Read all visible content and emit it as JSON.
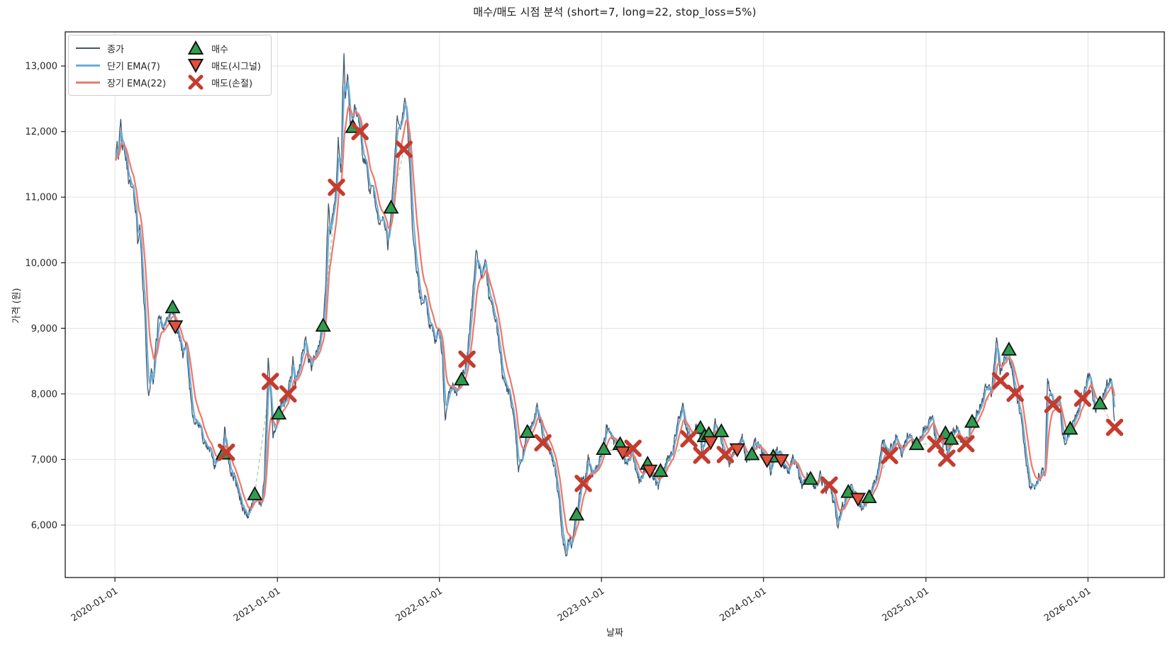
{
  "chart_data": {
    "type": "line",
    "title": "매수/매도 시점 분석 (short=7, long=22, stop_loss=5%)",
    "xlabel": "날짜",
    "ylabel": "가격 (원)",
    "params": {
      "short": 7,
      "long": 22,
      "stop_loss_pct": "5%"
    },
    "x_ticks": [
      "2020-01-01",
      "2021-01-01",
      "2022-01-01",
      "2023-01-01",
      "2024-01-01",
      "2025-01-01",
      "2026-01-01"
    ],
    "y_ticks": [
      6000,
      7000,
      8000,
      9000,
      10000,
      11000,
      12000,
      13000
    ],
    "y_tick_labels": [
      "6,000",
      "7,000",
      "8,000",
      "9,000",
      "10,000",
      "11,000",
      "12,000",
      "13,000"
    ],
    "xlim": [
      "2019-09-11",
      "2026-06-22"
    ],
    "ylim": [
      5200,
      13520
    ],
    "grid": true,
    "legend": {
      "position": "upper left",
      "close": "종가",
      "ema_short": "단기 EMA(7)",
      "ema_long": "장기 EMA(22)",
      "buy": "매수",
      "sell_signal": "매도(시그널)",
      "stop_loss": "매도(손절)"
    },
    "colors": {
      "close": "#44576b",
      "ema_short": "#6aaed6",
      "ema_long": "#ee7b6e",
      "buy": "#2e9e4e",
      "sell_signal": "#e0503c",
      "stop_loss": "#c43c2e",
      "marker_edge": "#111111",
      "grid": "#e2e2e2",
      "spine": "#1a1a1a",
      "trade_win": "#9fd8a8",
      "trade_loss": "#f2b0ac"
    },
    "close_series": [
      [
        "2020-01-02",
        11600
      ],
      [
        "2020-01-06",
        11900
      ],
      [
        "2020-01-09",
        11650
      ],
      [
        "2020-01-14",
        12150
      ],
      [
        "2020-01-17",
        11800
      ],
      [
        "2020-01-23",
        11680
      ],
      [
        "2020-01-31",
        11320
      ],
      [
        "2020-02-06",
        11150
      ],
      [
        "2020-02-12",
        11060
      ],
      [
        "2020-02-18",
        10720
      ],
      [
        "2020-02-21",
        10320
      ],
      [
        "2020-02-26",
        10560
      ],
      [
        "2020-03-03",
        9750
      ],
      [
        "2020-03-09",
        9100
      ],
      [
        "2020-03-13",
        8350
      ],
      [
        "2020-03-17",
        7950
      ],
      [
        "2020-03-23",
        8320
      ],
      [
        "2020-03-27",
        8180
      ],
      [
        "2020-04-03",
        8820
      ],
      [
        "2020-04-10",
        9220
      ],
      [
        "2020-04-17",
        9010
      ],
      [
        "2020-04-24",
        9120
      ],
      [
        "2020-05-04",
        9180
      ],
      [
        "2020-05-08",
        9310
      ],
      [
        "2020-05-13",
        9150
      ],
      [
        "2020-05-18",
        9010
      ],
      [
        "2020-05-25",
        8870
      ],
      [
        "2020-06-03",
        8570
      ],
      [
        "2020-06-10",
        8700
      ],
      [
        "2020-06-17",
        8120
      ],
      [
        "2020-06-24",
        7700
      ],
      [
        "2020-07-03",
        7560
      ],
      [
        "2020-07-14",
        7420
      ],
      [
        "2020-07-23",
        7210
      ],
      [
        "2020-08-04",
        7090
      ],
      [
        "2020-08-13",
        6910
      ],
      [
        "2020-08-24",
        7060
      ],
      [
        "2020-09-01",
        7100
      ],
      [
        "2020-09-04",
        7480
      ],
      [
        "2020-09-10",
        7050
      ],
      [
        "2020-09-18",
        6820
      ],
      [
        "2020-09-29",
        6700
      ],
      [
        "2020-10-08",
        6420
      ],
      [
        "2020-10-16",
        6230
      ],
      [
        "2020-10-27",
        6140
      ],
      [
        "2020-11-04",
        6330
      ],
      [
        "2020-11-11",
        6470
      ],
      [
        "2020-11-18",
        6380
      ],
      [
        "2020-11-26",
        6220
      ],
      [
        "2020-12-03",
        6850
      ],
      [
        "2020-12-08",
        7750
      ],
      [
        "2020-12-11",
        8600
      ],
      [
        "2020-12-16",
        8190
      ],
      [
        "2020-12-22",
        7320
      ],
      [
        "2020-12-29",
        7520
      ],
      [
        "2021-01-04",
        7700
      ],
      [
        "2021-01-12",
        7890
      ],
      [
        "2021-01-19",
        7820
      ],
      [
        "2021-01-25",
        8000
      ],
      [
        "2021-02-02",
        8380
      ],
      [
        "2021-02-05",
        8560
      ],
      [
        "2021-02-10",
        8160
      ],
      [
        "2021-02-18",
        8330
      ],
      [
        "2021-03-05",
        8860
      ],
      [
        "2021-03-12",
        8520
      ],
      [
        "2021-03-19",
        8430
      ],
      [
        "2021-03-31",
        8690
      ],
      [
        "2021-04-08",
        8840
      ],
      [
        "2021-04-14",
        9040
      ],
      [
        "2021-04-20",
        9700
      ],
      [
        "2021-04-26",
        10930
      ],
      [
        "2021-04-30",
        10400
      ],
      [
        "2021-05-07",
        10780
      ],
      [
        "2021-05-13",
        11120
      ],
      [
        "2021-05-18",
        11860
      ],
      [
        "2021-05-24",
        11380
      ],
      [
        "2021-05-28",
        12600
      ],
      [
        "2021-05-31",
        13130
      ],
      [
        "2021-06-03",
        12480
      ],
      [
        "2021-06-08",
        12880
      ],
      [
        "2021-06-14",
        12150
      ],
      [
        "2021-06-18",
        12060
      ],
      [
        "2021-06-24",
        12420
      ],
      [
        "2021-06-30",
        12230
      ],
      [
        "2021-07-06",
        12000
      ],
      [
        "2021-07-13",
        11580
      ],
      [
        "2021-07-20",
        11520
      ],
      [
        "2021-07-28",
        11010
      ],
      [
        "2021-08-04",
        11190
      ],
      [
        "2021-08-12",
        10790
      ],
      [
        "2021-08-20",
        10580
      ],
      [
        "2021-08-27",
        10700
      ],
      [
        "2021-09-07",
        10260
      ],
      [
        "2021-09-14",
        10840
      ],
      [
        "2021-09-21",
        11420
      ],
      [
        "2021-09-28",
        12180
      ],
      [
        "2021-10-05",
        12080
      ],
      [
        "2021-10-12",
        12300
      ],
      [
        "2021-10-15",
        12560
      ],
      [
        "2021-10-21",
        12080
      ],
      [
        "2021-10-27",
        11280
      ],
      [
        "2021-11-02",
        10420
      ],
      [
        "2021-11-09",
        10030
      ],
      [
        "2021-11-16",
        9580
      ],
      [
        "2021-11-23",
        9300
      ],
      [
        "2021-12-01",
        9520
      ],
      [
        "2021-12-08",
        9080
      ],
      [
        "2021-12-16",
        9010
      ],
      [
        "2021-12-23",
        8820
      ],
      [
        "2021-12-31",
        8960
      ],
      [
        "2022-01-07",
        8620
      ],
      [
        "2022-01-14",
        7500
      ],
      [
        "2022-01-21",
        8050
      ],
      [
        "2022-01-31",
        8120
      ],
      [
        "2022-02-08",
        8000
      ],
      [
        "2022-02-18",
        8220
      ],
      [
        "2022-02-25",
        8350
      ],
      [
        "2022-03-04",
        8530
      ],
      [
        "2022-03-14",
        9300
      ],
      [
        "2022-03-25",
        10230
      ],
      [
        "2022-04-05",
        9700
      ],
      [
        "2022-04-14",
        10100
      ],
      [
        "2022-04-22",
        9500
      ],
      [
        "2022-05-03",
        9300
      ],
      [
        "2022-05-13",
        8850
      ],
      [
        "2022-05-24",
        8250
      ],
      [
        "2022-06-07",
        8000
      ],
      [
        "2022-06-17",
        7700
      ],
      [
        "2022-06-28",
        6850
      ],
      [
        "2022-07-08",
        7100
      ],
      [
        "2022-07-18",
        7420
      ],
      [
        "2022-07-28",
        7550
      ],
      [
        "2022-08-09",
        7800
      ],
      [
        "2022-08-18",
        7500
      ],
      [
        "2022-08-26",
        7250
      ],
      [
        "2022-09-06",
        7100
      ],
      [
        "2022-09-16",
        6950
      ],
      [
        "2022-09-27",
        6350
      ],
      [
        "2022-10-07",
        5750
      ],
      [
        "2022-10-13",
        5560
      ],
      [
        "2022-10-21",
        5800
      ],
      [
        "2022-10-27",
        5680
      ],
      [
        "2022-11-04",
        6120
      ],
      [
        "2022-11-11",
        6350
      ],
      [
        "2022-11-18",
        6700
      ],
      [
        "2022-11-25",
        6620
      ],
      [
        "2022-12-02",
        7080
      ],
      [
        "2022-12-12",
        6700
      ],
      [
        "2022-12-23",
        6930
      ],
      [
        "2023-01-04",
        7130
      ],
      [
        "2023-01-13",
        7520
      ],
      [
        "2023-01-20",
        7350
      ],
      [
        "2023-01-31",
        7250
      ],
      [
        "2023-02-10",
        7240
      ],
      [
        "2023-02-17",
        7120
      ],
      [
        "2023-02-28",
        6900
      ],
      [
        "2023-03-10",
        7170
      ],
      [
        "2023-03-21",
        6800
      ],
      [
        "2023-03-30",
        6680
      ],
      [
        "2023-04-11",
        6880
      ],
      [
        "2023-04-18",
        6900
      ],
      [
        "2023-04-27",
        6720
      ],
      [
        "2023-05-09",
        6580
      ],
      [
        "2023-05-17",
        6830
      ],
      [
        "2023-05-26",
        6950
      ],
      [
        "2023-06-09",
        7120
      ],
      [
        "2023-06-23",
        7560
      ],
      [
        "2023-07-03",
        7790
      ],
      [
        "2023-07-12",
        7450
      ],
      [
        "2023-07-20",
        7300
      ],
      [
        "2023-07-28",
        7420
      ],
      [
        "2023-08-08",
        7480
      ],
      [
        "2023-08-16",
        7090
      ],
      [
        "2023-08-23",
        7360
      ],
      [
        "2023-08-31",
        7390
      ],
      [
        "2023-09-07",
        7260
      ],
      [
        "2023-09-14",
        7540
      ],
      [
        "2023-09-25",
        7430
      ],
      [
        "2023-10-05",
        7090
      ],
      [
        "2023-10-17",
        6950
      ],
      [
        "2023-10-26",
        7120
      ],
      [
        "2023-11-03",
        7160
      ],
      [
        "2023-11-14",
        7330
      ],
      [
        "2023-11-24",
        6960
      ],
      [
        "2023-12-05",
        7080
      ],
      [
        "2023-12-14",
        7240
      ],
      [
        "2023-12-26",
        7180
      ],
      [
        "2024-01-08",
        6990
      ],
      [
        "2024-01-17",
        6830
      ],
      [
        "2024-01-25",
        7050
      ],
      [
        "2024-02-06",
        7110
      ],
      [
        "2024-02-15",
        6960
      ],
      [
        "2024-02-27",
        6840
      ],
      [
        "2024-03-08",
        7090
      ],
      [
        "2024-03-19",
        6880
      ],
      [
        "2024-03-28",
        6570
      ],
      [
        "2024-04-09",
        6790
      ],
      [
        "2024-04-16",
        6700
      ],
      [
        "2024-04-26",
        6560
      ],
      [
        "2024-05-09",
        6780
      ],
      [
        "2024-05-21",
        6470
      ],
      [
        "2024-05-29",
        6600
      ],
      [
        "2024-06-07",
        6350
      ],
      [
        "2024-06-17",
        5960
      ],
      [
        "2024-06-26",
        6250
      ],
      [
        "2024-07-08",
        6480
      ],
      [
        "2024-07-17",
        6560
      ],
      [
        "2024-07-30",
        6420
      ],
      [
        "2024-08-09",
        6250
      ],
      [
        "2024-08-23",
        6420
      ],
      [
        "2024-09-04",
        6600
      ],
      [
        "2024-09-13",
        6780
      ],
      [
        "2024-09-25",
        7310
      ],
      [
        "2024-10-07",
        7060
      ],
      [
        "2024-10-18",
        7230
      ],
      [
        "2024-10-28",
        7430
      ],
      [
        "2024-11-07",
        7110
      ],
      [
        "2024-11-21",
        7370
      ],
      [
        "2024-12-03",
        7230
      ],
      [
        "2024-12-12",
        7240
      ],
      [
        "2024-12-24",
        7420
      ],
      [
        "2025-01-07",
        7530
      ],
      [
        "2025-01-16",
        7620
      ],
      [
        "2025-01-24",
        7230
      ],
      [
        "2025-02-04",
        7100
      ],
      [
        "2025-02-13",
        7400
      ],
      [
        "2025-02-19",
        7020
      ],
      [
        "2025-02-27",
        7320
      ],
      [
        "2025-03-11",
        7530
      ],
      [
        "2025-03-21",
        7210
      ],
      [
        "2025-04-01",
        7260
      ],
      [
        "2025-04-14",
        7570
      ],
      [
        "2025-04-24",
        7680
      ],
      [
        "2025-05-07",
        7860
      ],
      [
        "2025-05-16",
        8120
      ],
      [
        "2025-05-28",
        8020
      ],
      [
        "2025-06-09",
        8840
      ],
      [
        "2025-06-17",
        8250
      ],
      [
        "2025-06-25",
        8500
      ],
      [
        "2025-07-04",
        8660
      ],
      [
        "2025-07-14",
        8380
      ],
      [
        "2025-07-22",
        8000
      ],
      [
        "2025-07-31",
        7750
      ],
      [
        "2025-08-12",
        7100
      ],
      [
        "2025-08-22",
        6590
      ],
      [
        "2025-08-28",
        6540
      ],
      [
        "2025-09-09",
        6700
      ],
      [
        "2025-09-17",
        6800
      ],
      [
        "2025-09-26",
        6750
      ],
      [
        "2025-10-02",
        8250
      ],
      [
        "2025-10-10",
        7950
      ],
      [
        "2025-10-17",
        7840
      ],
      [
        "2025-10-28",
        7950
      ],
      [
        "2025-11-07",
        7280
      ],
      [
        "2025-11-18",
        7400
      ],
      [
        "2025-11-27",
        7560
      ],
      [
        "2025-12-09",
        7740
      ],
      [
        "2025-12-18",
        7930
      ],
      [
        "2026-01-06",
        8290
      ],
      [
        "2026-01-16",
        7700
      ],
      [
        "2026-01-27",
        7850
      ],
      [
        "2026-02-12",
        8120
      ],
      [
        "2026-02-23",
        8230
      ],
      [
        "2026-03-02",
        7530
      ]
    ],
    "signals": {
      "buy": [
        [
          "2020-05-10",
          9320
        ],
        [
          "2020-09-01",
          7090
        ],
        [
          "2020-11-11",
          6470
        ],
        [
          "2021-01-04",
          7700
        ],
        [
          "2021-04-14",
          9040
        ],
        [
          "2021-06-20",
          12070
        ],
        [
          "2021-09-14",
          10840
        ],
        [
          "2022-02-20",
          8220
        ],
        [
          "2022-07-18",
          7420
        ],
        [
          "2022-11-06",
          6160
        ],
        [
          "2023-01-06",
          7160
        ],
        [
          "2023-02-12",
          7235
        ],
        [
          "2023-04-15",
          6935
        ],
        [
          "2023-05-14",
          6825
        ],
        [
          "2023-08-12",
          7480
        ],
        [
          "2023-08-21",
          7355
        ],
        [
          "2023-08-31",
          7390
        ],
        [
          "2023-09-28",
          7430
        ],
        [
          "2023-12-06",
          7080
        ],
        [
          "2024-01-23",
          7045
        ],
        [
          "2024-04-16",
          6705
        ],
        [
          "2024-07-10",
          6505
        ],
        [
          "2024-08-26",
          6425
        ],
        [
          "2024-12-11",
          7235
        ],
        [
          "2025-02-14",
          7400
        ],
        [
          "2025-02-27",
          7315
        ],
        [
          "2025-04-15",
          7575
        ],
        [
          "2025-07-07",
          8675
        ],
        [
          "2025-11-22",
          7470
        ],
        [
          "2026-01-28",
          7855
        ]
      ],
      "sell_signal": [
        [
          "2020-05-16",
          9030
        ],
        [
          "2023-02-18",
          7110
        ],
        [
          "2023-04-20",
          6830
        ],
        [
          "2023-09-04",
          7265
        ],
        [
          "2023-11-03",
          7155
        ],
        [
          "2024-01-09",
          6990
        ],
        [
          "2024-02-10",
          6990
        ],
        [
          "2024-08-01",
          6400
        ]
      ],
      "stop_loss": [
        [
          "2020-09-08",
          7110
        ],
        [
          "2020-12-16",
          8190
        ],
        [
          "2021-01-25",
          8000
        ],
        [
          "2021-05-14",
          11150
        ],
        [
          "2021-07-06",
          12000
        ],
        [
          "2021-10-13",
          11730
        ],
        [
          "2022-03-04",
          8530
        ],
        [
          "2022-08-22",
          7255
        ],
        [
          "2022-11-21",
          6635
        ],
        [
          "2023-03-13",
          7170
        ],
        [
          "2023-07-17",
          7315
        ],
        [
          "2023-08-15",
          7065
        ],
        [
          "2023-10-07",
          7075
        ],
        [
          "2024-05-28",
          6610
        ],
        [
          "2024-10-11",
          7060
        ],
        [
          "2025-01-23",
          7235
        ],
        [
          "2025-02-17",
          7020
        ],
        [
          "2025-04-01",
          7240
        ],
        [
          "2025-06-18",
          8200
        ],
        [
          "2025-07-21",
          8010
        ],
        [
          "2025-10-14",
          7840
        ],
        [
          "2025-12-20",
          7935
        ],
        [
          "2026-03-02",
          7490
        ]
      ]
    }
  }
}
